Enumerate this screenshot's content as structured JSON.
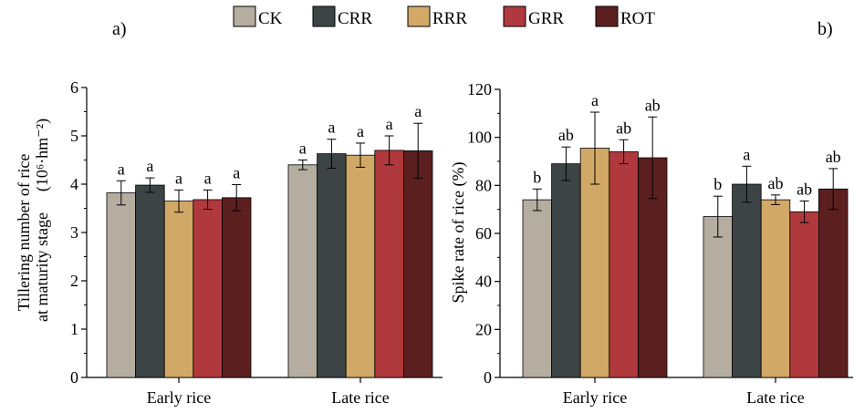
{
  "legend": {
    "position": "top-center",
    "items": [
      {
        "label": "CK",
        "color": "#b5ada0"
      },
      {
        "label": "CRR",
        "color": "#3d4446"
      },
      {
        "label": "RRR",
        "color": "#d2a866"
      },
      {
        "label": "GRR",
        "color": "#b0393d"
      },
      {
        "label": "ROT",
        "color": "#5c1f20"
      }
    ]
  },
  "chart_data": [
    {
      "panel_label": "a)",
      "type": "bar",
      "categories": [
        "Early rice",
        "Late rice"
      ],
      "ylabel_line1": "Tillering number of rice",
      "ylabel_line2": "at maturity stage",
      "ylabel_unit": "(10⁶·hm⁻²)",
      "ylim": [
        0,
        6
      ],
      "yticks": [
        "0",
        "1",
        "2",
        "3",
        "4",
        "5",
        "6"
      ],
      "grid": false,
      "series": [
        {
          "name": "CK",
          "values": [
            3.82,
            4.4
          ],
          "errors": [
            0.25,
            0.1
          ],
          "letters": [
            "a",
            "a"
          ]
        },
        {
          "name": "CRR",
          "values": [
            3.98,
            4.63
          ],
          "errors": [
            0.15,
            0.3
          ],
          "letters": [
            "a",
            "a"
          ]
        },
        {
          "name": "RRR",
          "values": [
            3.65,
            4.6
          ],
          "errors": [
            0.23,
            0.25
          ],
          "letters": [
            "a",
            "a"
          ]
        },
        {
          "name": "GRR",
          "values": [
            3.68,
            4.7
          ],
          "errors": [
            0.2,
            0.3
          ],
          "letters": [
            "a",
            "a"
          ]
        },
        {
          "name": "ROT",
          "values": [
            3.72,
            4.69
          ],
          "errors": [
            0.27,
            0.57
          ],
          "letters": [
            "a",
            "a"
          ]
        }
      ]
    },
    {
      "panel_label": "b)",
      "type": "bar",
      "categories": [
        "Early rice",
        "Late rice"
      ],
      "ylabel_line1": "Spike rate of rice  (%)",
      "ylim": [
        0,
        120
      ],
      "yticks": [
        "0",
        "20",
        "40",
        "60",
        "80",
        "100",
        "120"
      ],
      "grid": false,
      "series": [
        {
          "name": "CK",
          "values": [
            74.0,
            67.0
          ],
          "errors": [
            4.5,
            8.5
          ],
          "letters": [
            "b",
            "b"
          ]
        },
        {
          "name": "CRR",
          "values": [
            89.0,
            80.5
          ],
          "errors": [
            7.0,
            7.5
          ],
          "letters": [
            "ab",
            "a"
          ]
        },
        {
          "name": "RRR",
          "values": [
            95.5,
            74.0
          ],
          "errors": [
            15.0,
            2.0
          ],
          "letters": [
            "a",
            "ab"
          ]
        },
        {
          "name": "GRR",
          "values": [
            94.0,
            69.0
          ],
          "errors": [
            5.0,
            4.5
          ],
          "letters": [
            "ab",
            "ab"
          ]
        },
        {
          "name": "ROT",
          "values": [
            91.5,
            78.5
          ],
          "errors": [
            17.0,
            8.5
          ],
          "letters": [
            "ab",
            "ab"
          ]
        }
      ]
    }
  ]
}
